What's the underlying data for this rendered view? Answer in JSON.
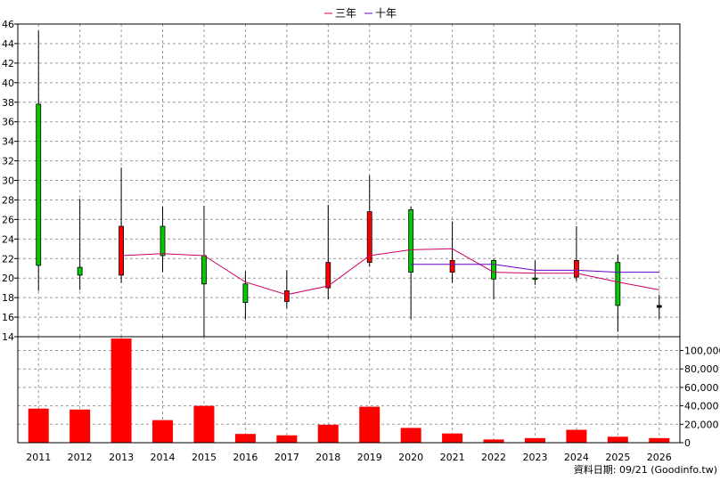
{
  "chart_data": {
    "type": "candlestick",
    "legend": [
      "三年",
      "十年"
    ],
    "legend_colors": [
      "#cc0066",
      "#6600cc"
    ],
    "footer": "資料日期: 09/21  (Goodinfo.tw)",
    "price_axis": {
      "min": 14,
      "max": 46,
      "ticks": [
        14,
        16,
        18,
        20,
        22,
        24,
        26,
        28,
        30,
        32,
        34,
        36,
        38,
        40,
        42,
        44,
        46
      ]
    },
    "volume_axis": {
      "min": 0,
      "max": 115000,
      "ticks": [
        0,
        20000,
        40000,
        60000,
        80000,
        100000
      ],
      "tick_labels": [
        "0",
        "20,000",
        "40,000",
        "60,000",
        "80,000",
        "100,000"
      ]
    },
    "years": [
      "2011",
      "2012",
      "2013",
      "2014",
      "2015",
      "2016",
      "2017",
      "2018",
      "2019",
      "2020",
      "2021",
      "2022",
      "2023",
      "2024",
      "2025",
      "2026"
    ],
    "candles": [
      {
        "year": "2011",
        "open": 37.8,
        "close": 21.3,
        "high": 45.3,
        "low": 18.7,
        "color": "#00cc00"
      },
      {
        "year": "2012",
        "open": 21.1,
        "close": 20.3,
        "high": 28.1,
        "low": 18.8,
        "color": "#00cc00"
      },
      {
        "year": "2013",
        "open": 20.3,
        "close": 25.3,
        "high": 31.3,
        "low": 19.5,
        "color": "#ff0000"
      },
      {
        "year": "2014",
        "open": 25.3,
        "close": 22.3,
        "high": 27.3,
        "low": 20.6,
        "color": "#00cc00"
      },
      {
        "year": "2015",
        "open": 22.3,
        "close": 19.4,
        "high": 27.4,
        "low": 14.0,
        "color": "#00cc00"
      },
      {
        "year": "2016",
        "open": 19.4,
        "close": 17.5,
        "high": 20.7,
        "low": 15.8,
        "color": "#00cc00"
      },
      {
        "year": "2017",
        "open": 17.6,
        "close": 18.7,
        "high": 20.8,
        "low": 16.9,
        "color": "#ff0000"
      },
      {
        "year": "2018",
        "open": 19.0,
        "close": 21.6,
        "high": 27.5,
        "low": 17.8,
        "color": "#ff0000"
      },
      {
        "year": "2019",
        "open": 21.6,
        "close": 26.8,
        "high": 30.5,
        "low": 21.2,
        "color": "#ff0000"
      },
      {
        "year": "2020",
        "open": 27.0,
        "close": 20.6,
        "high": 27.3,
        "low": 15.8,
        "color": "#00cc00"
      },
      {
        "year": "2021",
        "open": 20.6,
        "close": 21.8,
        "high": 25.8,
        "low": 19.5,
        "color": "#ff0000"
      },
      {
        "year": "2022",
        "open": 21.8,
        "close": 19.9,
        "high": 22.0,
        "low": 17.8,
        "color": "#00cc00"
      },
      {
        "year": "2023",
        "open": 20.0,
        "close": 19.9,
        "high": 21.8,
        "low": 19.3,
        "color": "#00cc00"
      },
      {
        "year": "2024",
        "open": 20.1,
        "close": 21.8,
        "high": 25.3,
        "low": 19.7,
        "color": "#ff0000"
      },
      {
        "year": "2025",
        "open": 21.6,
        "close": 17.2,
        "high": 22.4,
        "low": 14.5,
        "color": "#00cc00"
      },
      {
        "year": "2026",
        "open": 17.2,
        "close": 17.0,
        "high": 18.3,
        "low": 15.8,
        "color": "#000000"
      }
    ],
    "series": [
      {
        "name": "三年",
        "color": "#cc0066",
        "values": [
          null,
          null,
          22.3,
          22.5,
          22.3,
          19.6,
          18.3,
          19.2,
          22.3,
          22.9,
          23.0,
          20.6,
          20.5,
          20.5,
          19.6,
          18.8
        ]
      },
      {
        "name": "十年",
        "color": "#6600cc",
        "values": [
          null,
          null,
          null,
          null,
          null,
          null,
          null,
          null,
          null,
          21.4,
          21.4,
          21.4,
          20.8,
          20.8,
          20.6,
          20.6
        ]
      }
    ],
    "volume": [
      37000,
      36000,
      113000,
      24500,
      40000,
      9500,
      8000,
      19500,
      39000,
      16000,
      10000,
      3500,
      5000,
      14000,
      6500,
      5000
    ],
    "volume_color": "#ff0000"
  }
}
